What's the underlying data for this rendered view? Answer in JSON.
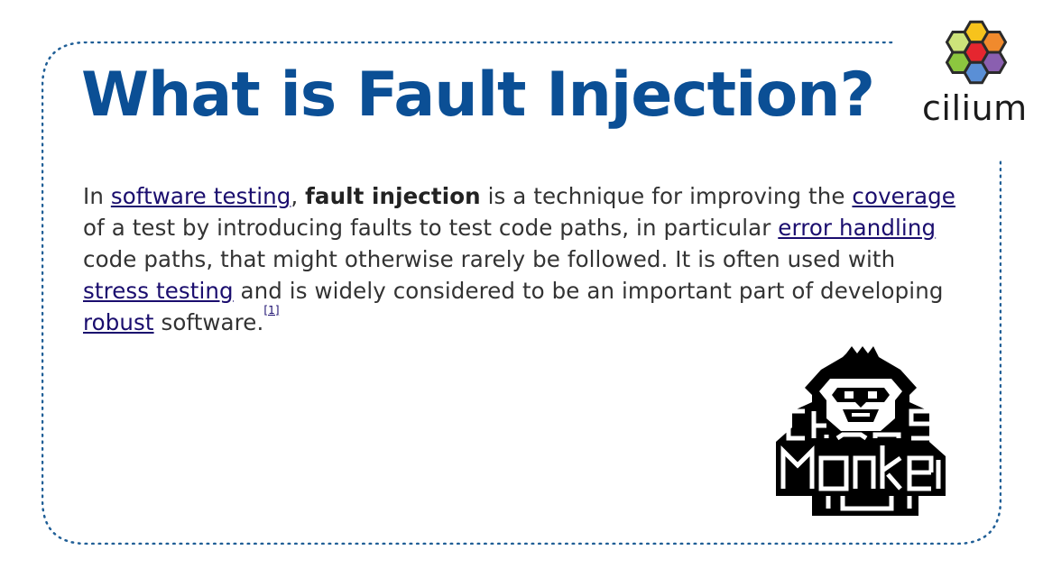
{
  "slide": {
    "title": "What is Fault Injection?",
    "paragraph": [
      {
        "text": "In "
      },
      {
        "text": "software testing",
        "link": true
      },
      {
        "text": ", "
      },
      {
        "text": "fault injection",
        "bold": true
      },
      {
        "text": " is a technique for improving the "
      },
      {
        "text": "coverage",
        "link": true
      },
      {
        "text": " of a test by introducing faults to test code paths, in particular "
      },
      {
        "text": "error handling",
        "link": true
      },
      {
        "text": " code paths, that might otherwise rarely be followed. It is often used with "
      },
      {
        "text": "stress testing",
        "link": true
      },
      {
        "text": " and is widely considered to be an important part of developing "
      },
      {
        "text": "robust",
        "link": true
      },
      {
        "text": " software."
      },
      {
        "text": "[1]",
        "link": true,
        "sup": true
      }
    ]
  },
  "logo": {
    "name": "cilium",
    "hex_colors": [
      "#cde37a",
      "#f7c31c",
      "#f08a2d",
      "#8cc63f",
      "#e5262f",
      "#8a5fb0",
      "#5a8fd6"
    ]
  },
  "mascot": {
    "icon": "chaos-monkey-icon"
  },
  "colors": {
    "title": "#0b4f95",
    "link": "#1a0d6e",
    "text": "#333333",
    "frame": "#1f5e96"
  }
}
